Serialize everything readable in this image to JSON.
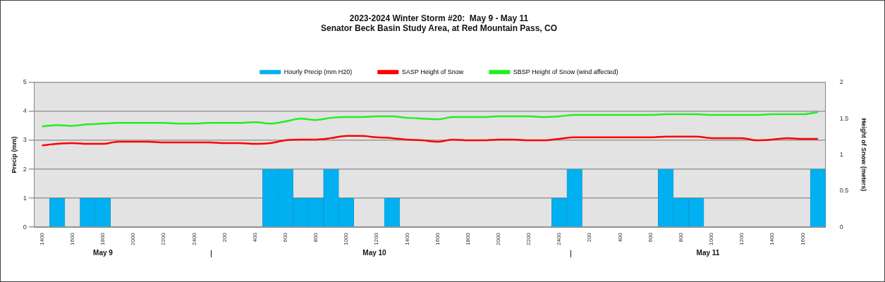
{
  "chart_data": {
    "type": "bar",
    "title": "2023-2024 Winter Storm #20:  May 9 - May 11",
    "subtitle": "Senator Beck Basin Study Area, at Red Mountain Pass, CO",
    "categories": [
      "1400",
      null,
      "1600",
      null,
      "1800",
      null,
      "2000",
      null,
      "2200",
      null,
      "2400",
      null,
      "200",
      null,
      "400",
      null,
      "600",
      null,
      "800",
      null,
      "1000",
      null,
      "1200",
      null,
      "1400",
      null,
      "1600",
      null,
      "1800",
      null,
      "2000",
      null,
      "2200",
      null,
      "2400",
      null,
      "200",
      null,
      "400",
      null,
      "600",
      null,
      "800",
      null,
      "1000",
      null,
      "1200",
      null,
      "1400",
      null,
      "1600",
      null
    ],
    "series": [
      {
        "name": "Hourly Precip (mm H20)",
        "color": "#00b0f0",
        "values": [
          0,
          1,
          0,
          1,
          1,
          0,
          0,
          0,
          0,
          0,
          0,
          0,
          0,
          0,
          0,
          2,
          2,
          1,
          1,
          2,
          1,
          0,
          0,
          1,
          0,
          0,
          0,
          0,
          0,
          0,
          0,
          0,
          0,
          0,
          1,
          2,
          0,
          0,
          0,
          0,
          0,
          2,
          1,
          1,
          0,
          0,
          0,
          0,
          0,
          0,
          0,
          2
        ]
      },
      {
        "name": "SASP Height of Snow",
        "type": "line",
        "axis": "y2",
        "color": "#ff0000",
        "values": [
          1.13,
          1.15,
          1.16,
          1.15,
          1.15,
          1.18,
          1.18,
          1.18,
          1.17,
          1.17,
          1.17,
          1.17,
          1.16,
          1.16,
          1.15,
          1.16,
          1.2,
          1.21,
          1.21,
          1.23,
          1.26,
          1.26,
          1.24,
          1.23,
          1.21,
          1.2,
          1.18,
          1.21,
          1.2,
          1.2,
          1.21,
          1.21,
          1.2,
          1.2,
          1.22,
          1.24,
          1.24,
          1.24,
          1.24,
          1.24,
          1.24,
          1.25,
          1.25,
          1.25,
          1.23,
          1.23,
          1.23,
          1.2,
          1.21,
          1.23,
          1.22,
          1.22
        ]
      },
      {
        "name": "SBSP Height of Snow (wind affected)",
        "type": "line",
        "axis": "y2",
        "color": "#22ee22",
        "values": [
          1.39,
          1.41,
          1.4,
          1.42,
          1.43,
          1.44,
          1.44,
          1.44,
          1.44,
          1.43,
          1.43,
          1.44,
          1.44,
          1.44,
          1.45,
          1.43,
          1.46,
          1.5,
          1.48,
          1.51,
          1.52,
          1.52,
          1.53,
          1.53,
          1.51,
          1.5,
          1.49,
          1.52,
          1.52,
          1.52,
          1.53,
          1.53,
          1.53,
          1.52,
          1.53,
          1.55,
          1.55,
          1.55,
          1.55,
          1.55,
          1.55,
          1.56,
          1.56,
          1.56,
          1.55,
          1.55,
          1.55,
          1.55,
          1.56,
          1.56,
          1.56,
          1.59
        ]
      }
    ],
    "ylabel": "Precip (mm)",
    "y2label": "Height of Snow (meters)",
    "ylim": [
      0,
      5
    ],
    "yticks": [
      0,
      1,
      2,
      3,
      4,
      5
    ],
    "y2lim": [
      0,
      2
    ],
    "y2ticks": [
      0,
      0.5,
      1,
      1.5,
      2
    ],
    "grid": "y",
    "legend": "top",
    "marker": "none",
    "line_style": "solid",
    "annotations": [
      "May 9",
      "May 10",
      "May 11"
    ]
  }
}
